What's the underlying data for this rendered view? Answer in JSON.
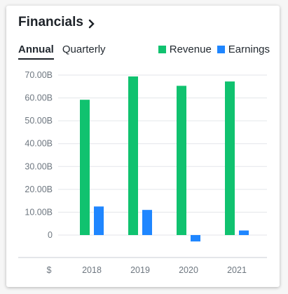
{
  "header": {
    "title": "Financials",
    "chevron_icon": "chevron-right-icon"
  },
  "tabs": [
    {
      "label": "Annual",
      "active": true
    },
    {
      "label": "Quarterly",
      "active": false
    }
  ],
  "colors": {
    "revenue": "#10c26f",
    "earnings": "#1f86ff",
    "grid": "#e3e6ea"
  },
  "chart_data": {
    "type": "bar",
    "categories": [
      "2018",
      "2019",
      "2020",
      "2021"
    ],
    "series": [
      {
        "name": "Revenue",
        "values": [
          59.2,
          69.4,
          65.3,
          67.2
        ]
      },
      {
        "name": "Earnings",
        "values": [
          12.5,
          11.0,
          -2.8,
          2.0
        ]
      }
    ],
    "ylim": [
      0,
      70
    ],
    "yticks": [
      "70.00B",
      "60.00B",
      "50.00B",
      "40.00B",
      "30.00B",
      "20.00B",
      "10.00B",
      "0"
    ],
    "unit_label": "$",
    "legend_position": "top-right",
    "grid": true
  }
}
